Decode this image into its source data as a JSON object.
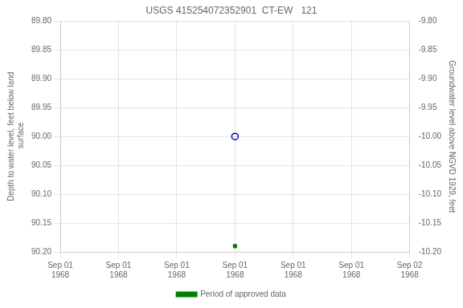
{
  "chart_data": {
    "type": "line",
    "title": "USGS 415254072352901  CT-EW   121",
    "y_label": "Depth to water level, feet below land\n surface",
    "y2_label": "Groundwater level above NGVD 1929, feet",
    "categories": [
      "Sep 01\n1968",
      "Sep 01\n1968",
      "Sep 01\n1968",
      "Sep 01\n1968",
      "Sep 01\n1968",
      "Sep 01\n1968",
      "Sep 02\n1968"
    ],
    "series": [
      {
        "color": "#0000cc",
        "marker": "circle",
        "line_style": "none",
        "values": [
          null,
          null,
          null,
          90.0,
          null,
          null,
          null
        ]
      },
      {
        "name": "Period of approved data",
        "color": "#008000",
        "marker": "square",
        "line_style": "none",
        "values": [
          null,
          null,
          null,
          90.19,
          null,
          null,
          null
        ]
      }
    ],
    "ylim": [
      90.2,
      89.8
    ],
    "yticks": [
      {
        "value": 89.8,
        "label": "89.80"
      },
      {
        "value": 89.85,
        "label": "89.85"
      },
      {
        "value": 89.9,
        "label": "89.90"
      },
      {
        "value": 89.95,
        "label": "89.95"
      },
      {
        "value": 90.0,
        "label": "90.00"
      },
      {
        "value": 90.05,
        "label": "90.05"
      },
      {
        "value": 90.1,
        "label": "90.10"
      },
      {
        "value": 90.15,
        "label": "90.15"
      },
      {
        "value": 90.2,
        "label": "90.20"
      }
    ],
    "y2lim": [
      -10.2,
      -9.8
    ],
    "y2ticks": [
      {
        "value": -9.8,
        "label": "-9.80"
      },
      {
        "value": -9.85,
        "label": "-9.85"
      },
      {
        "value": -9.9,
        "label": "-9.90"
      },
      {
        "value": -9.95,
        "label": "-9.95"
      },
      {
        "value": -10.0,
        "label": "-10.00"
      },
      {
        "value": -10.05,
        "label": "-10.05"
      },
      {
        "value": -10.1,
        "label": "-10.10"
      },
      {
        "value": -10.15,
        "label": "-10.15"
      },
      {
        "value": -10.2,
        "label": "-10.20"
      }
    ],
    "grid": true,
    "legend": "bottom"
  }
}
